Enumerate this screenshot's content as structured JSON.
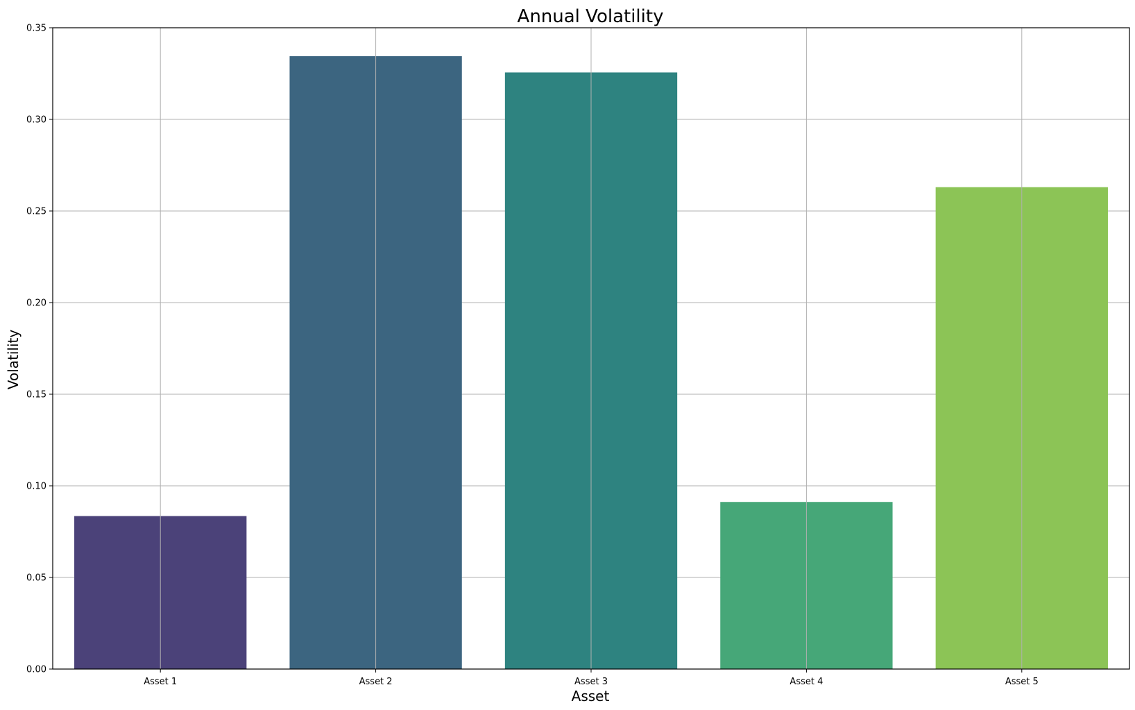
{
  "chart_data": {
    "type": "bar",
    "title": "Annual Volatility",
    "xlabel": "Asset",
    "ylabel": "Volatility",
    "categories": [
      "Asset 1",
      "Asset 2",
      "Asset 3",
      "Asset 4",
      "Asset 5"
    ],
    "values": [
      0.0835,
      0.3345,
      0.3256,
      0.0912,
      0.263
    ],
    "colors": [
      "#4b4279",
      "#3c6580",
      "#2e8380",
      "#46a778",
      "#8cc456"
    ],
    "ylim": [
      0,
      0.35
    ],
    "yticks": [
      0.0,
      0.05,
      0.1,
      0.15,
      0.2,
      0.25,
      0.3,
      0.35
    ],
    "ytick_labels": [
      "0.00",
      "0.05",
      "0.10",
      "0.15",
      "0.20",
      "0.25",
      "0.30",
      "0.35"
    ],
    "grid": true,
    "legend": false
  }
}
